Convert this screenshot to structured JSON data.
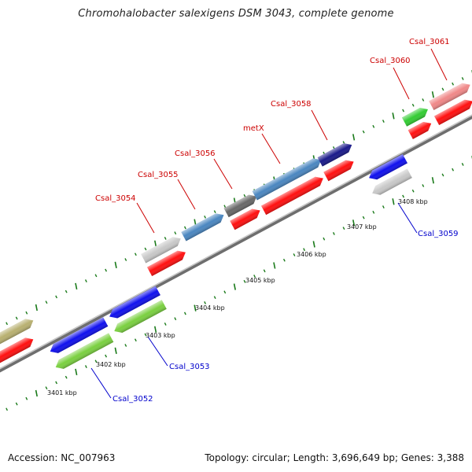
{
  "title": "Chromohalobacter salexigens DSM 3043, complete genome",
  "footer": {
    "accession": "Accession: NC_007963",
    "summary": "Topology: circular; Length: 3,696,649 bp; Genes: 3,388"
  },
  "colors": {
    "backbone": "#8a8a8a",
    "tick": "#1a7a1a",
    "label_top": "#cc0000",
    "label_bottom": "#0000cc"
  },
  "position_labels": [
    "3401 kbp",
    "3402 kbp",
    "3403 kbp",
    "3404 kbp",
    "3405 kbp",
    "3406 kbp",
    "3407 kbp",
    "3408 kbp"
  ],
  "genes": [
    {
      "id": "g0a",
      "name": "",
      "strand": "plus",
      "color": "#b8b070"
    },
    {
      "id": "g0b",
      "name": "",
      "strand": "plus",
      "color": "#ff1010"
    },
    {
      "id": "Csal_3052",
      "name": "Csal_3052",
      "strand": "minus",
      "color": "#1010ee"
    },
    {
      "id": "Csal_3052_b",
      "name": "",
      "strand": "minus",
      "color": "#7ad040"
    },
    {
      "id": "Csal_3053",
      "name": "Csal_3053",
      "strand": "minus",
      "color": "#1010ee"
    },
    {
      "id": "Csal_3053_b",
      "name": "",
      "strand": "minus",
      "color": "#7ad040"
    },
    {
      "id": "Csal_3054",
      "name": "Csal_3054",
      "strand": "plus",
      "color": "#c8c8c8"
    },
    {
      "id": "Csal_3054_b",
      "name": "",
      "strand": "plus",
      "color": "#ff1010"
    },
    {
      "id": "Csal_3055",
      "name": "Csal_3055",
      "strand": "plus",
      "color": "#4a86c0"
    },
    {
      "id": "Csal_3055_b",
      "name": "",
      "strand": "plus",
      "color": "#ff1010"
    },
    {
      "id": "Csal_3056",
      "name": "Csal_3056",
      "strand": "plus",
      "color": "#686868"
    },
    {
      "id": "metX",
      "name": "metX",
      "strand": "plus",
      "color": "#4a86c0"
    },
    {
      "id": "metX_b",
      "name": "",
      "strand": "plus",
      "color": "#ff1010"
    },
    {
      "id": "Csal_3058",
      "name": "Csal_3058",
      "strand": "plus",
      "color": "#1a1a8a"
    },
    {
      "id": "Csal_3058_b",
      "name": "",
      "strand": "plus",
      "color": "#ff1010"
    },
    {
      "id": "Csal_3059",
      "name": "Csal_3059",
      "strand": "minus",
      "color": "#1010ee"
    },
    {
      "id": "Csal_3059_b",
      "name": "",
      "strand": "minus",
      "color": "#c8c8c8"
    },
    {
      "id": "Csal_3060",
      "name": "Csal_3060",
      "strand": "plus",
      "color": "#33cc33"
    },
    {
      "id": "Csal_3060_b",
      "name": "",
      "strand": "plus",
      "color": "#ff1010"
    },
    {
      "id": "Csal_3061",
      "name": "Csal_3061",
      "strand": "plus",
      "color": "#f08888"
    },
    {
      "id": "Csal_3061_b",
      "name": "",
      "strand": "plus",
      "color": "#ff1010"
    }
  ]
}
